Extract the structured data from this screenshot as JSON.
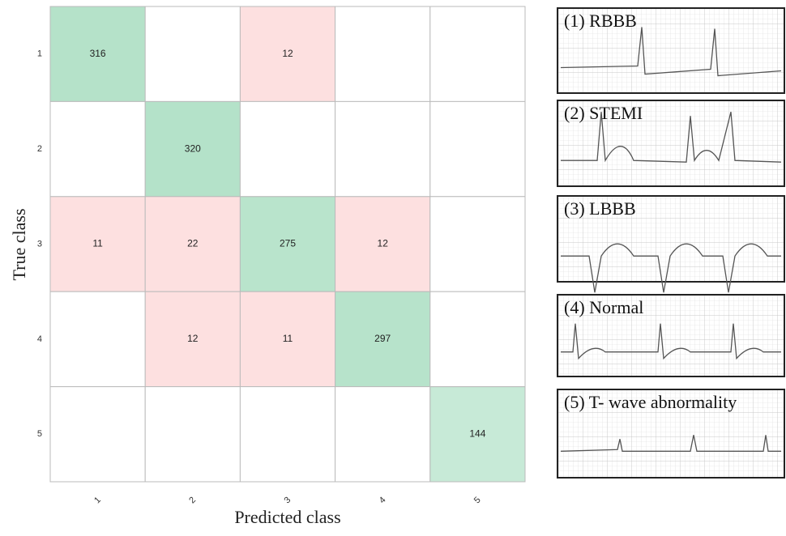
{
  "chart_data": {
    "type": "heatmap",
    "x_label": "Predicted class",
    "y_label": "True class",
    "x_categories": [
      "1",
      "2",
      "3",
      "4",
      "5"
    ],
    "y_categories": [
      "1",
      "2",
      "3",
      "4",
      "5"
    ],
    "values": [
      [
        316,
        null,
        12,
        null,
        null
      ],
      [
        null,
        320,
        null,
        null,
        null
      ],
      [
        11,
        22,
        275,
        12,
        null
      ],
      [
        null,
        12,
        11,
        297,
        null
      ],
      [
        null,
        null,
        null,
        null,
        144
      ]
    ],
    "colors": {
      "correct": "#a7ddbf",
      "error": "#fde0e0"
    }
  },
  "ecg_panels": {
    "labels": [
      "(1) RBBB",
      "(2) STEMI",
      "(3) LBBB",
      "(4) Normal",
      "(5) T- wave abnormality"
    ]
  }
}
